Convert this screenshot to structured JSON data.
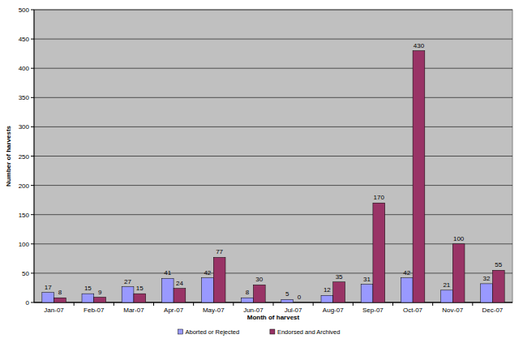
{
  "chart_data": {
    "type": "bar",
    "x_label": "Month of harvest",
    "y_label": "Number of harvests",
    "categories": [
      "Jan-07",
      "Feb-07",
      "Mar-07",
      "Apr-07",
      "May-07",
      "Jun-07",
      "Jul-07",
      "Aug-07",
      "Sep-07",
      "Oct-07",
      "Nov-07",
      "Dec-07"
    ],
    "series": [
      {
        "name": "Aborted or Rejected",
        "color": "#9999ff",
        "values": [
          17,
          15,
          27,
          41,
          42,
          8,
          5,
          12,
          31,
          42,
          21,
          32
        ]
      },
      {
        "name": "Endorsed and Archived",
        "color": "#993366",
        "values": [
          8,
          9,
          15,
          24,
          77,
          30,
          0,
          35,
          170,
          430,
          100,
          55
        ]
      }
    ],
    "ylim": [
      0,
      500
    ],
    "yticks": [
      0,
      50,
      100,
      150,
      200,
      250,
      300,
      350,
      400,
      450,
      500
    ],
    "grid": true,
    "data_labels": true,
    "legend": "bottom"
  }
}
